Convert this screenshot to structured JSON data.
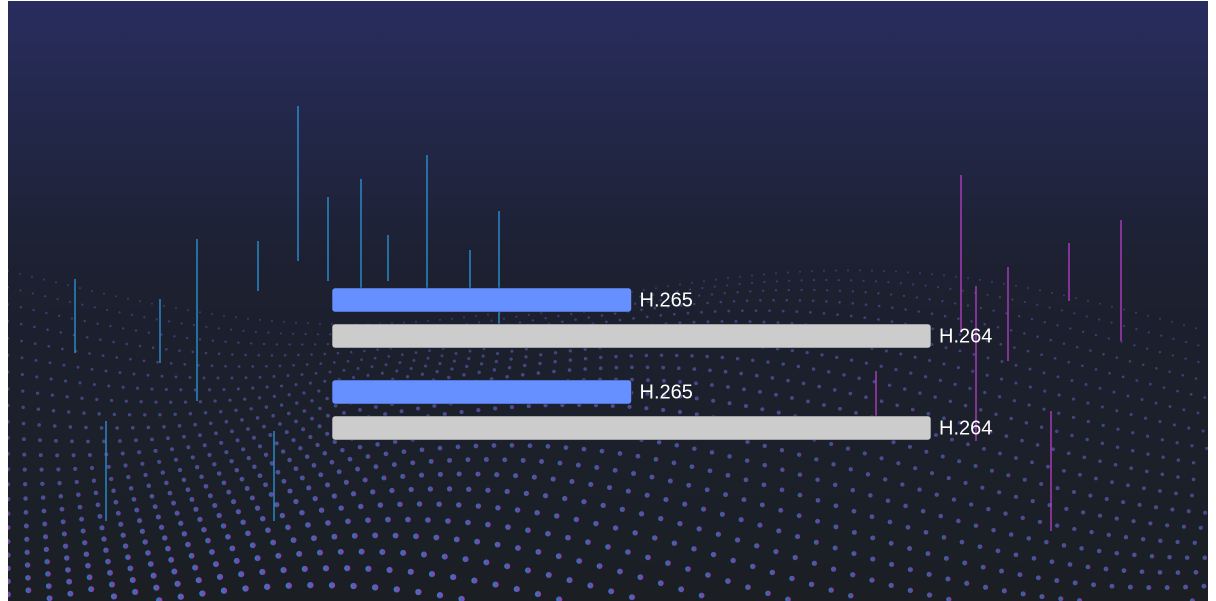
{
  "chart_data": {
    "type": "bar",
    "horizontal": true,
    "xlim": [
      0,
      100
    ],
    "groups": [
      {
        "bars": [
          {
            "label": "H.265",
            "value": 50,
            "color": "#6690ff"
          },
          {
            "label": "H.264",
            "value": 100,
            "color": "#cccccc"
          }
        ]
      },
      {
        "bars": [
          {
            "label": "H.265",
            "value": 50,
            "color": "#6690ff"
          },
          {
            "label": "H.264",
            "value": 100,
            "color": "#cccccc"
          }
        ]
      }
    ]
  }
}
